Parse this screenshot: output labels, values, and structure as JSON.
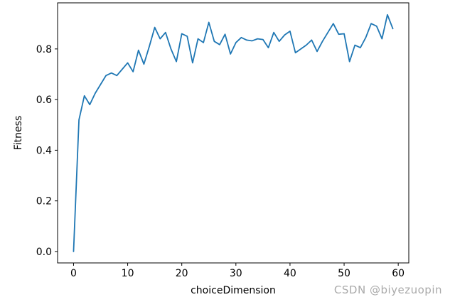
{
  "chart_data": {
    "type": "line",
    "title": "",
    "xlabel": "choiceDimension",
    "ylabel": "Fitness",
    "x": [
      0,
      1,
      2,
      3,
      4,
      5,
      6,
      7,
      8,
      9,
      10,
      11,
      12,
      13,
      14,
      15,
      16,
      17,
      18,
      19,
      20,
      21,
      22,
      23,
      24,
      25,
      26,
      27,
      28,
      29,
      30,
      31,
      32,
      33,
      34,
      35,
      36,
      37,
      38,
      39,
      40,
      41,
      42,
      43,
      44,
      45,
      46,
      47,
      48,
      49,
      50,
      51,
      52,
      53,
      54,
      55,
      56,
      57,
      58,
      59
    ],
    "y": [
      0.0,
      0.52,
      0.615,
      0.58,
      0.625,
      0.66,
      0.695,
      0.705,
      0.695,
      0.72,
      0.745,
      0.71,
      0.795,
      0.74,
      0.81,
      0.885,
      0.84,
      0.865,
      0.8,
      0.75,
      0.86,
      0.85,
      0.745,
      0.84,
      0.825,
      0.905,
      0.83,
      0.817,
      0.858,
      0.78,
      0.825,
      0.845,
      0.835,
      0.832,
      0.84,
      0.837,
      0.805,
      0.865,
      0.83,
      0.855,
      0.87,
      0.785,
      0.8,
      0.815,
      0.835,
      0.79,
      0.83,
      0.865,
      0.9,
      0.858,
      0.86,
      0.75,
      0.815,
      0.805,
      0.845,
      0.9,
      0.89,
      0.84,
      0.935,
      0.88
    ],
    "x_tick_labels": [
      "0",
      "10",
      "20",
      "30",
      "40",
      "50",
      "60"
    ],
    "y_tick_labels": [
      "0.0",
      "0.2",
      "0.4",
      "0.6",
      "0.8"
    ],
    "xlim": [
      -2.95,
      61.95
    ],
    "ylim": [
      -0.045,
      0.982
    ],
    "grid": false,
    "legend": "none",
    "line_color": "#1f77b4",
    "axis_color": "#000000",
    "tick_font_size": 14,
    "label_font_size": 14
  },
  "watermark": {
    "text": "CSDN @biyezuopin",
    "color": "#aaaaaa"
  }
}
